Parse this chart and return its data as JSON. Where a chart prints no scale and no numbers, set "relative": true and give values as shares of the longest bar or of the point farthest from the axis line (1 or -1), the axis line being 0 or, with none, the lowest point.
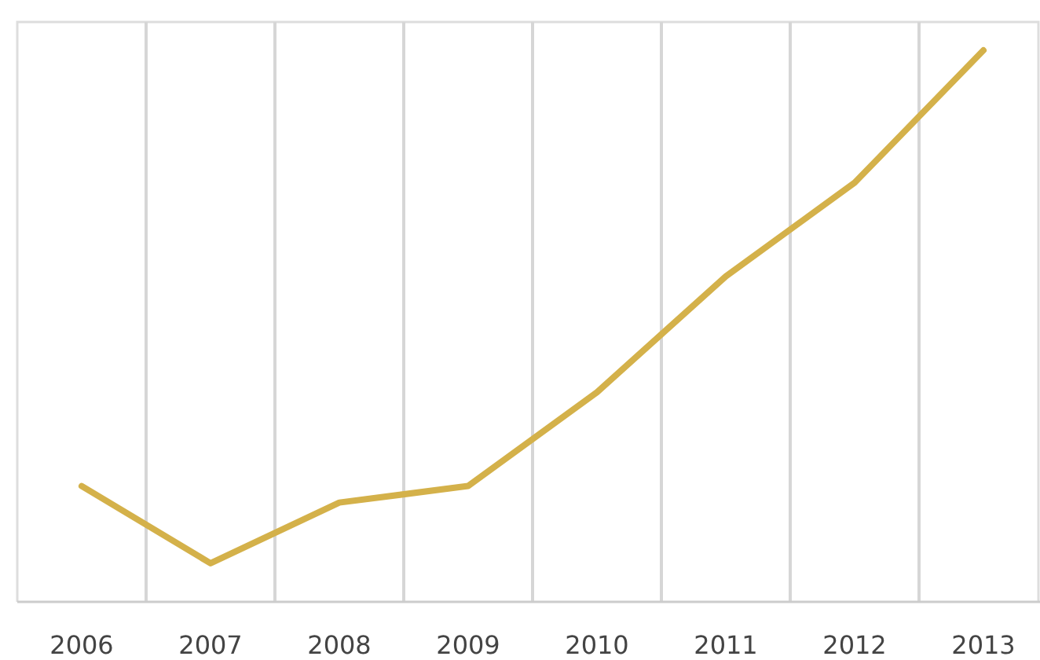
{
  "chart_data": {
    "type": "line",
    "relative": true,
    "categories": [
      "2006",
      "2007",
      "2008",
      "2009",
      "2010",
      "2011",
      "2012",
      "2013"
    ],
    "series": [
      {
        "color": "#d4b14a",
        "values": [
          0.21,
          0.07,
          0.18,
          0.21,
          0.38,
          0.59,
          0.76,
          1
        ]
      }
    ],
    "grid": "x",
    "marker": "none",
    "line_style": "solid"
  }
}
